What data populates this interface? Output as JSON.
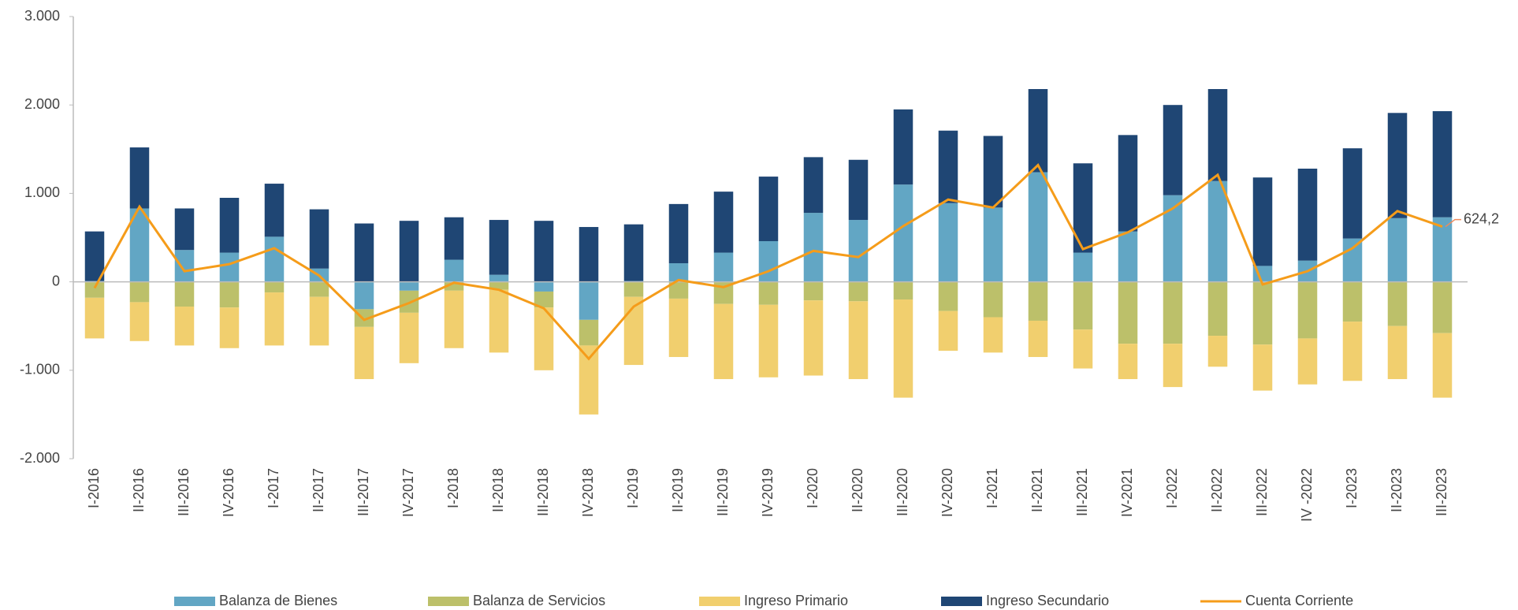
{
  "chart_data": {
    "type": "bar",
    "stacked": true,
    "categories": [
      "I-2016",
      "II-2016",
      "III-2016",
      "IV-2016",
      "I-2017",
      "II-2017",
      "III-2017",
      "IV-2017",
      "I-2018",
      "II-2018",
      "III-2018",
      "IV-2018",
      "I-2019",
      "II-2019",
      "III-2019",
      "IV-2019",
      "I-2020",
      "II-2020",
      "III-2020",
      "IV-2020",
      "I-2021",
      "II-2021",
      "III-2021",
      "IV-2021",
      "I-2022",
      "II-2022",
      "III-2022",
      "IV -2022",
      "I-2023",
      "II-2023",
      "III-2023"
    ],
    "series": [
      {
        "name": "Balanza de Bienes",
        "color": "#62a6c4",
        "values": [
          10,
          830,
          360,
          330,
          510,
          150,
          -310,
          -100,
          250,
          80,
          -110,
          -430,
          10,
          210,
          330,
          460,
          780,
          700,
          1100,
          890,
          840,
          1240,
          330,
          570,
          980,
          1140,
          180,
          240,
          490,
          720,
          730
        ]
      },
      {
        "name": "Balanza de Servicios",
        "color": "#bcc06a",
        "values": [
          -180,
          -230,
          -280,
          -290,
          -120,
          -170,
          -200,
          -250,
          -100,
          -90,
          -180,
          -290,
          -170,
          -190,
          -250,
          -260,
          -210,
          -220,
          -200,
          -330,
          -400,
          -440,
          -540,
          -700,
          -700,
          -610,
          -710,
          -640,
          -450,
          -500,
          -580
        ]
      },
      {
        "name": "Ingreso Primario",
        "color": "#f1cf6e",
        "values": [
          -460,
          -440,
          -440,
          -460,
          -600,
          -550,
          -590,
          -570,
          -650,
          -710,
          -710,
          -780,
          -770,
          -660,
          -850,
          -820,
          -850,
          -880,
          -1110,
          -450,
          -400,
          -410,
          -440,
          -400,
          -490,
          -350,
          -520,
          -520,
          -670,
          -600,
          -730
        ]
      },
      {
        "name": "Ingreso Secundario",
        "color": "#1f4674",
        "values": [
          560,
          690,
          470,
          620,
          600,
          670,
          660,
          690,
          480,
          620,
          690,
          620,
          640,
          670,
          690,
          730,
          630,
          680,
          850,
          820,
          810,
          940,
          1010,
          1090,
          1020,
          1040,
          1000,
          1040,
          1020,
          1190,
          1200
        ]
      },
      {
        "name": "Cuenta Corriente",
        "color": "#f59c1a",
        "type": "line",
        "values": [
          -70,
          850,
          120,
          200,
          380,
          70,
          -430,
          -240,
          -10,
          -90,
          -300,
          -870,
          -280,
          20,
          -60,
          120,
          350,
          280,
          630,
          930,
          840,
          1320,
          370,
          560,
          830,
          1210,
          -30,
          120,
          380,
          800,
          624.2
        ],
        "value_labels": [
          null,
          null,
          null,
          null,
          null,
          null,
          null,
          null,
          null,
          null,
          null,
          null,
          null,
          null,
          null,
          null,
          null,
          null,
          null,
          null,
          null,
          null,
          null,
          null,
          null,
          null,
          null,
          null,
          null,
          null,
          "624,2"
        ]
      }
    ],
    "ylim": [
      -2000,
      3000
    ],
    "yticks": [
      {
        "value": 3000,
        "label": "3.000"
      },
      {
        "value": 2000,
        "label": "2.000"
      },
      {
        "value": 1000,
        "label": "1.000"
      },
      0,
      {
        "value": -1000,
        "label": "-1.000"
      },
      {
        "value": -2000,
        "label": "-2.000"
      }
    ],
    "grid": false,
    "legend": "bottom"
  }
}
